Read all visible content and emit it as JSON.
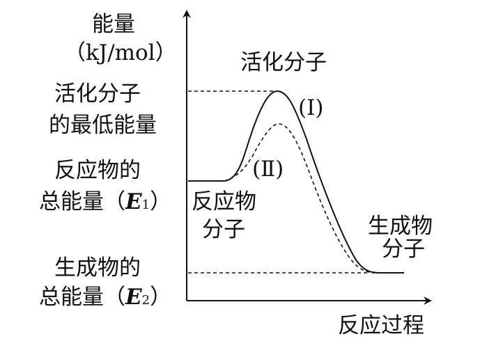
{
  "y_axis": {
    "label": "能量",
    "unit": "（kJ/mol）"
  },
  "x_axis": {
    "label": "反应过程"
  },
  "labels": {
    "activated_molecules": "活化分子",
    "min_energy_line1": "活化分子",
    "min_energy_line2": "的最低能量",
    "reactant_total_line1": "反应物的",
    "reactant_total_line2_prefix": "总能量（",
    "reactant_symbol": "E",
    "reactant_sub": "1",
    "reactant_close": "）",
    "product_total_line1": "生成物的",
    "product_total_line2_prefix": "总能量（",
    "product_symbol": "E",
    "product_sub": "2",
    "product_close": "）",
    "reactant_molecules_line1": "反应物",
    "reactant_molecules_line2": "分子",
    "product_molecules_line1": "生成物",
    "product_molecules_line2": "分子",
    "curve_1": "(Ⅰ)",
    "curve_2": "(Ⅱ)"
  },
  "colors": {
    "ink": "#111111",
    "background": "#ffffff"
  }
}
